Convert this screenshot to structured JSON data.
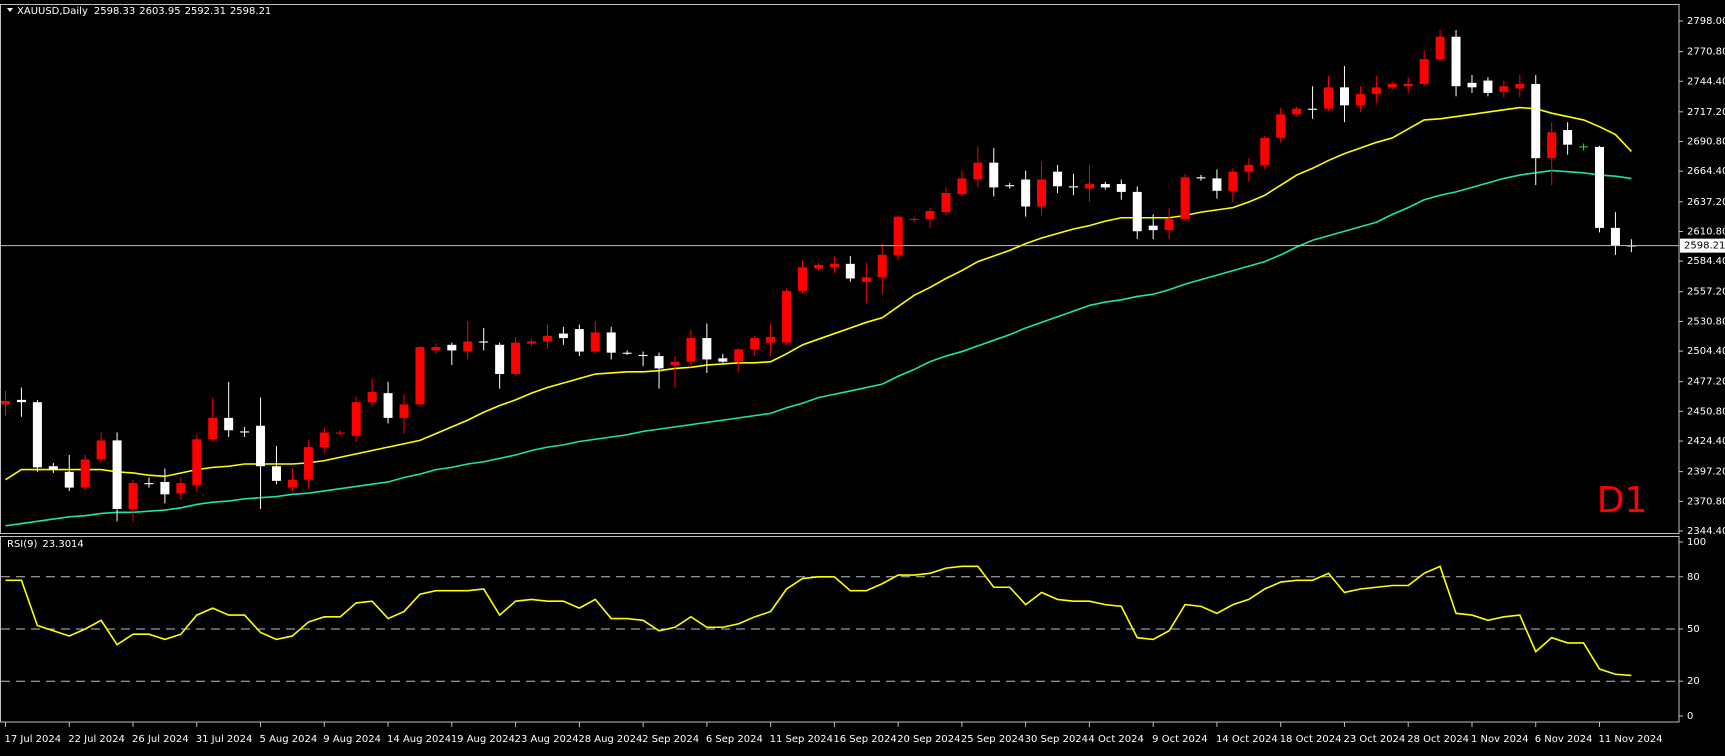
{
  "chart_data": [
    {
      "type": "candlestick",
      "title": "XAUUSD,Daily",
      "annotation": "D1",
      "categories": [
        "17 Jul 2024",
        null,
        null,
        null,
        "22 Jul 2024",
        null,
        null,
        null,
        "26 Jul 2024",
        null,
        null,
        null,
        "31 Jul 2024",
        null,
        null,
        null,
        "5 Aug 2024",
        null,
        null,
        null,
        "9 Aug 2024",
        null,
        null,
        null,
        "14 Aug 2024",
        null,
        null,
        null,
        "19 Aug 2024",
        null,
        null,
        null,
        "23 Aug 2024",
        null,
        null,
        null,
        "28 Aug 2024",
        null,
        null,
        null,
        "2 Sep 2024",
        null,
        null,
        null,
        "6 Sep 2024",
        null,
        null,
        null,
        "11 Sep 2024",
        null,
        null,
        null,
        "16 Sep 2024",
        null,
        null,
        null,
        "20 Sep 2024",
        null,
        null,
        null,
        "25 Sep 2024",
        null,
        null,
        null,
        "30 Sep 2024",
        null,
        null,
        null,
        "4 Oct 2024",
        null,
        null,
        null,
        "9 Oct 2024",
        null,
        null,
        null,
        "14 Oct 2024",
        null,
        null,
        null,
        "18 Oct 2024",
        null,
        null,
        null,
        "23 Oct 2024",
        null,
        null,
        null,
        "28 Oct 2024",
        null,
        null,
        null,
        "1 Nov 2024",
        null,
        null,
        null,
        "6 Nov 2024",
        null,
        null,
        null,
        "11 Nov 2024",
        null,
        null
      ],
      "open": [
        2457,
        2461,
        2459,
        2402,
        2397,
        2383,
        2408,
        2425,
        2364,
        2387,
        2388,
        2378,
        2385,
        2426,
        2445,
        2433,
        2438,
        2402,
        2383,
        2390,
        2419,
        2431,
        2429,
        2459,
        2467,
        2445,
        2457,
        2505,
        2510,
        2504,
        2513,
        2510,
        2484,
        2511,
        2513,
        2520,
        2524,
        2504,
        2521,
        2503,
        2501,
        2500,
        2492,
        2495,
        2516,
        2498,
        2495,
        2506,
        2512,
        2512,
        2558,
        2578,
        2579,
        2582,
        2566,
        2570,
        2590,
        2621,
        2622,
        2628,
        2644,
        2657,
        2672,
        2652,
        2657,
        2633,
        2664,
        2651,
        2649,
        2653,
        2653,
        2646,
        2616,
        2612,
        2622,
        2659,
        2658,
        2647,
        2664,
        2670,
        2694,
        2715,
        2720,
        2720,
        2739,
        2723,
        2733,
        2739,
        2740,
        2742,
        2764,
        2784,
        2743,
        2745,
        2735,
        2738,
        2742,
        2676,
        2701,
        2686,
        2686,
        2614,
        2598.33
      ],
      "high": [
        2469,
        2472,
        2461,
        2405,
        2412,
        2412,
        2432,
        2432,
        2390,
        2392,
        2400,
        2392,
        2430,
        2463,
        2477,
        2437,
        2463,
        2420,
        2400,
        2425,
        2436,
        2434,
        2464,
        2480,
        2477,
        2466,
        2509,
        2511,
        2512,
        2531,
        2525,
        2512,
        2517,
        2515,
        2528,
        2526,
        2528,
        2531,
        2526,
        2505,
        2504,
        2503,
        2500,
        2523,
        2529,
        2502,
        2507,
        2518,
        2529,
        2560,
        2585,
        2583,
        2589,
        2589,
        2583,
        2600,
        2625,
        2624,
        2632,
        2650,
        2665,
        2686,
        2685,
        2654,
        2665,
        2673,
        2670,
        2662,
        2670,
        2655,
        2657,
        2651,
        2626,
        2632,
        2662,
        2661,
        2666,
        2667,
        2676,
        2696,
        2721,
        2722,
        2740,
        2749,
        2758,
        2740,
        2749,
        2744,
        2748,
        2772,
        2790,
        2790,
        2750,
        2748,
        2745,
        2750,
        2750,
        2708,
        2708,
        2689,
        2687,
        2628,
        2603.95
      ],
      "low": [
        2447,
        2446,
        2397,
        2396,
        2380,
        2380,
        2405,
        2353,
        2353,
        2383,
        2369,
        2372,
        2380,
        2424,
        2428,
        2428,
        2364,
        2386,
        2380,
        2382,
        2414,
        2429,
        2424,
        2455,
        2440,
        2431,
        2456,
        2502,
        2492,
        2497,
        2505,
        2471,
        2482,
        2509,
        2506,
        2510,
        2500,
        2502,
        2497,
        2501,
        2491,
        2471,
        2472,
        2490,
        2485,
        2494,
        2486,
        2500,
        2500,
        2510,
        2556,
        2576,
        2574,
        2566,
        2547,
        2555,
        2585,
        2619,
        2614,
        2625,
        2642,
        2650,
        2642,
        2649,
        2624,
        2625,
        2645,
        2643,
        2637,
        2648,
        2639,
        2604,
        2604,
        2604,
        2620,
        2656,
        2640,
        2637,
        2655,
        2666,
        2690,
        2713,
        2711,
        2718,
        2708,
        2717,
        2725,
        2737,
        2734,
        2740,
        2762,
        2731,
        2734,
        2731,
        2730,
        2730,
        2652,
        2652,
        2679,
        2683,
        2610,
        2590,
        2592.31
      ],
      "close": [
        2460,
        2459,
        2401,
        2399,
        2383,
        2408,
        2425,
        2364,
        2387,
        2386,
        2377,
        2387,
        2426,
        2445,
        2434,
        2432,
        2402,
        2389,
        2390,
        2419,
        2432,
        2432,
        2459,
        2468,
        2445,
        2457,
        2508,
        2508,
        2505,
        2513,
        2512,
        2484,
        2512,
        2513,
        2518,
        2516,
        2504,
        2521,
        2503,
        2502,
        2500,
        2489,
        2495,
        2516,
        2497,
        2495,
        2506,
        2516,
        2517,
        2558,
        2579,
        2581,
        2582,
        2569,
        2570,
        2590,
        2624,
        2622,
        2629,
        2645,
        2658,
        2672,
        2650,
        2651,
        2633,
        2657,
        2651,
        2650,
        2653,
        2650,
        2646,
        2611,
        2612,
        2622,
        2659,
        2658,
        2647,
        2664,
        2670,
        2694,
        2715,
        2720,
        2719,
        2739,
        2723,
        2733,
        2739,
        2742,
        2742,
        2764,
        2784,
        2740,
        2739,
        2734,
        2740,
        2742,
        2676,
        2699,
        2688,
        2686,
        2614,
        2598,
        2598.21
      ],
      "up_color": "#ff0000",
      "down_color": "#ffffff",
      "doji_color": "#00ff00",
      "price_line_color": "#c0c0c0",
      "series": [
        {
          "color": "#ffff00",
          "values": [
            2390,
            2399,
            2399,
            2399,
            2399,
            2399,
            2399,
            2397,
            2396,
            2394,
            2393,
            2396,
            2399,
            2401,
            2402,
            2404,
            2404,
            2404,
            2404,
            2405,
            2407,
            2410,
            2413,
            2416,
            2419,
            2422,
            2425,
            2431,
            2437,
            2443,
            2450,
            2456,
            2461,
            2467,
            2472,
            2476,
            2480,
            2484,
            2485,
            2486,
            2486,
            2487,
            2489,
            2490,
            2492,
            2493,
            2494,
            2494,
            2495,
            2502,
            2510,
            2515,
            2520,
            2525,
            2530,
            2534,
            2544,
            2554,
            2561,
            2569,
            2576,
            2584,
            2589,
            2594,
            2600,
            2605,
            2609,
            2613,
            2616,
            2620,
            2623,
            2623,
            2623,
            2623,
            2625,
            2628,
            2630,
            2632,
            2637,
            2643,
            2652,
            2661,
            2667,
            2674,
            2680,
            2685,
            2690,
            2694,
            2702,
            2710,
            2711,
            2713,
            2715,
            2717,
            2719,
            2721,
            2720,
            2716,
            2713,
            2710,
            2704,
            2697,
            2682
          ]
        },
        {
          "color": "#20e0b0",
          "values": [
            2349,
            2351,
            2353,
            2355,
            2357,
            2358,
            2360,
            2361,
            2361,
            2362,
            2363,
            2365,
            2368,
            2370,
            2371,
            2373,
            2374,
            2375,
            2377,
            2378,
            2380,
            2382,
            2384,
            2386,
            2388,
            2392,
            2395,
            2399,
            2401,
            2404,
            2406,
            2409,
            2412,
            2416,
            2419,
            2421,
            2424,
            2426,
            2428,
            2430,
            2433,
            2435,
            2437,
            2439,
            2441,
            2443,
            2445,
            2447,
            2449,
            2454,
            2458,
            2463,
            2466,
            2469,
            2472,
            2475,
            2482,
            2488,
            2495,
            2500,
            2504,
            2509,
            2514,
            2519,
            2525,
            2530,
            2535,
            2540,
            2545,
            2548,
            2550,
            2553,
            2555,
            2559,
            2564,
            2568,
            2572,
            2576,
            2580,
            2584,
            2590,
            2597,
            2603,
            2607,
            2611,
            2615,
            2619,
            2626,
            2632,
            2639,
            2643,
            2646,
            2650,
            2654,
            2658,
            2661,
            2663,
            2665,
            2664,
            2663,
            2661,
            2660,
            2658
          ]
        }
      ],
      "ylim": [
        2342.62,
        2812.23
      ],
      "yticks": [
        {
          "value": 2798,
          "label": "2798.00"
        },
        {
          "value": 2770.8,
          "label": "2770.80"
        },
        {
          "value": 2744.4,
          "label": "2744.40"
        },
        {
          "value": 2717.2,
          "label": "2717.20"
        },
        {
          "value": 2690.8,
          "label": "2690.80"
        },
        {
          "value": 2664.4,
          "label": "2664.40"
        },
        {
          "value": 2637.2,
          "label": "2637.20"
        },
        {
          "value": 2610.8,
          "label": "2610.80"
        },
        {
          "value": 2584.4,
          "label": "2584.40"
        },
        {
          "value": 2557.2,
          "label": "2557.20"
        },
        {
          "value": 2530.8,
          "label": "2530.80"
        },
        {
          "value": 2504.4,
          "label": "2504.40"
        },
        {
          "value": 2477.2,
          "label": "2477.20"
        },
        {
          "value": 2450.8,
          "label": "2450.80"
        },
        {
          "value": 2424.4,
          "label": "2424.40"
        },
        {
          "value": 2397.2,
          "label": "2397.20"
        },
        {
          "value": 2370.8,
          "label": "2370.80"
        },
        {
          "value": 2344.4,
          "label": "2344.40"
        }
      ],
      "grid": false
    },
    {
      "type": "line",
      "title": "RSI(9)",
      "series": [
        {
          "color": "#ffff00",
          "values": [
            78,
            78,
            52,
            49,
            46,
            50,
            55,
            41,
            47,
            47,
            44,
            47,
            58,
            62,
            58,
            58,
            48,
            44,
            46,
            54,
            57,
            57,
            65,
            66,
            56,
            60,
            70,
            72,
            72,
            72,
            73,
            58,
            66,
            67,
            66,
            66,
            62,
            67,
            56,
            56,
            55,
            49,
            51,
            57,
            51,
            51,
            53,
            57,
            60,
            73,
            79,
            80,
            80,
            72,
            72,
            76,
            81,
            81,
            82,
            85,
            86,
            86,
            74,
            74,
            64,
            71,
            67,
            66,
            66,
            64,
            63,
            45,
            44,
            49,
            64,
            63,
            59,
            64,
            67,
            73,
            77,
            78,
            78,
            82,
            71,
            73,
            74,
            75,
            75,
            82,
            86,
            59,
            58,
            55,
            57,
            58,
            37,
            45,
            42,
            42,
            27,
            24,
            23.3014
          ]
        }
      ],
      "ylim": [
        0,
        100
      ],
      "yticks": [
        100,
        80,
        50,
        20,
        0
      ],
      "grid": "dashed"
    }
  ]
}
